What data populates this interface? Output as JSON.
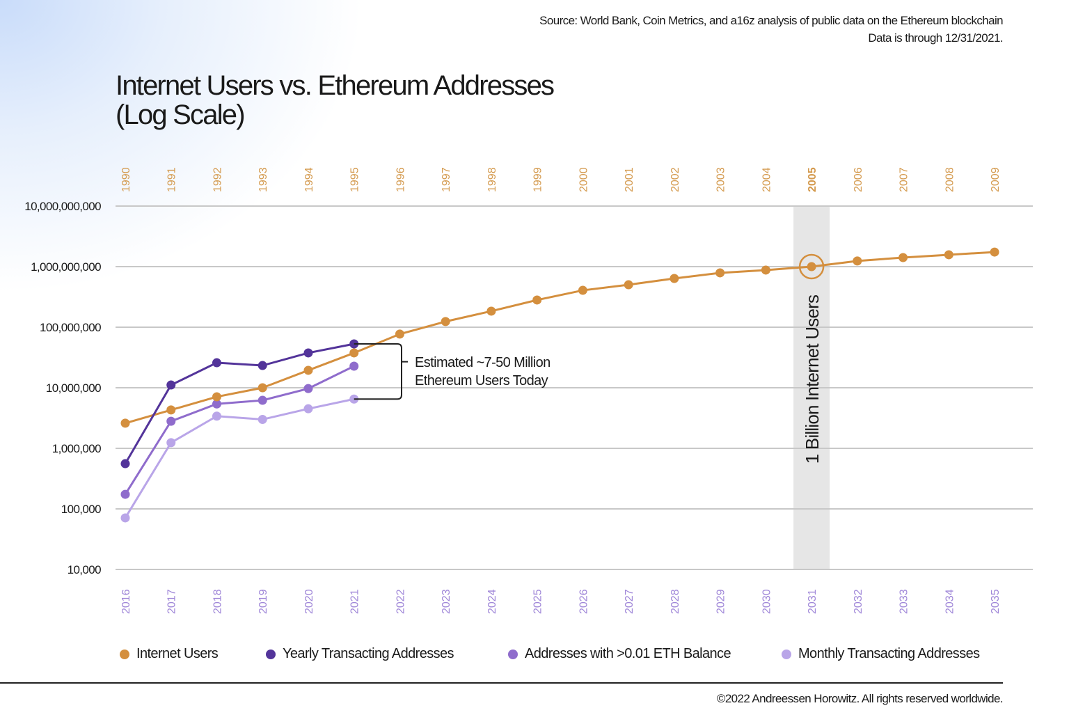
{
  "source": {
    "line1": "Source: World Bank, Coin Metrics, and a16z analysis of public data on the Ethereum blockchain",
    "line2": "Data is through 12/31/2021."
  },
  "footer": "©2022 Andreessen Horowitz. All rights reserved worldwide.",
  "colors": {
    "internet": "#d48f3e",
    "yearly": "#53349a",
    "balance": "#8f6ccc",
    "monthly": "#b9a5e8",
    "grid": "#c8c8c8",
    "highlight": "#e6e6e6",
    "top_axis": "#d49a4e",
    "bottom_axis": "#9f86d8"
  },
  "chart_data": {
    "type": "line",
    "title": "Internet Users vs. Ethereum Addresses",
    "title_line2": "(Log Scale)",
    "y_scale": "log",
    "ylim": [
      10000,
      10000000000
    ],
    "grid": true,
    "legend_placement": "bottom",
    "y_ticks": [
      "10,000,000,000",
      "1,000,000,000",
      "100,000,000",
      "10,000,000",
      "1,000,000",
      "100,000",
      "10,000"
    ],
    "y_tick_values": [
      10000000000,
      1000000000,
      100000000,
      10000000,
      1000000,
      100000,
      10000
    ],
    "x_top_label_series": "Internet Users",
    "x_top": [
      "1990",
      "1991",
      "1992",
      "1993",
      "1994",
      "1995",
      "1996",
      "1997",
      "1998",
      "1999",
      "2000",
      "2001",
      "2002",
      "2003",
      "2004",
      "2005",
      "2006",
      "2007",
      "2008",
      "2009"
    ],
    "x_top_highlight": "2005",
    "x_bottom": [
      "2016",
      "2017",
      "2018",
      "2019",
      "2020",
      "2021",
      "2022",
      "2023",
      "2024",
      "2025",
      "2026",
      "2027",
      "2028",
      "2029",
      "2030",
      "2031",
      "2032",
      "2033",
      "2034",
      "2035"
    ],
    "series": [
      {
        "name": "Internet Users",
        "color_key": "internet",
        "values": [
          2600000,
          4300000,
          7100000,
          10000000,
          19400000,
          37600000,
          77000000,
          124000000,
          184000000,
          281000000,
          406000000,
          502000000,
          638000000,
          789000000,
          877000000,
          1000000000,
          1240000000,
          1410000000,
          1570000000,
          1740000000
        ]
      },
      {
        "name": "Yearly Transacting Addresses",
        "color_key": "yearly",
        "values": [
          558000,
          11100000,
          25900000,
          23300000,
          37600000,
          53000000
        ]
      },
      {
        "name": "Addresses with >0.01 ETH Balance",
        "color_key": "balance",
        "values": [
          174000,
          2800000,
          5400000,
          6200000,
          9700000,
          22700000
        ]
      },
      {
        "name": "Monthly Transacting Addresses",
        "color_key": "monthly",
        "values": [
          71000,
          1240000,
          3400000,
          3000000,
          4500000,
          6500000
        ]
      }
    ],
    "annotations": {
      "bracket_line1": "Estimated ~7-50 Million",
      "bracket_line2": "Ethereum Users Today",
      "highlight_label": "1 Billion Internet Users",
      "highlight_index": 15
    }
  }
}
